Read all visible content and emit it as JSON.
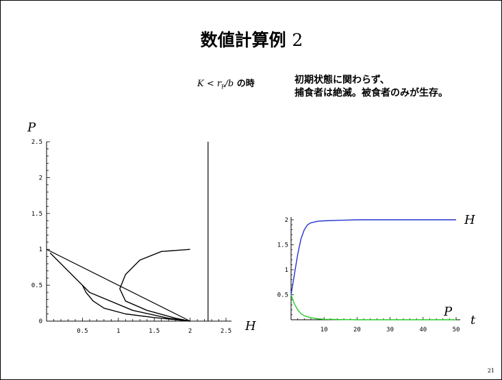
{
  "slide": {
    "title_main": "数値計算例",
    "title_num": "2",
    "condition_K": "K",
    "condition_lt": " < ",
    "condition_r": "r",
    "condition_sub": "P",
    "condition_b": "/b",
    "condition_suffix": " の時",
    "description_line1": "初期状態に関わらず、",
    "description_line2": "捕食者は絶滅。被食者のみが生存。",
    "page_number": "21"
  },
  "chart_data": [
    {
      "type": "line",
      "title": "",
      "xlabel": "H",
      "ylabel": "P",
      "xlim": [
        0,
        2.5
      ],
      "ylim": [
        0,
        2.5
      ],
      "x_ticks": [
        0.5,
        1,
        1.5,
        2,
        2.5
      ],
      "y_ticks": [
        0,
        0.5,
        1,
        1.5,
        2,
        2.5
      ],
      "x_tick_labels": [
        "0.5",
        "1",
        "1.5",
        "2",
        "2.5"
      ],
      "y_tick_labels": [
        "0",
        "0.5",
        "1",
        "1.5",
        "2",
        "2.5"
      ],
      "grid": false,
      "lines": [
        {
          "type": "nullcline",
          "points": [
            [
              0,
              1
            ],
            [
              2,
              0
            ]
          ]
        },
        {
          "type": "vertical",
          "points": [
            [
              2.25,
              0
            ],
            [
              2.25,
              2.5
            ]
          ]
        }
      ],
      "series": [
        {
          "points": [
            [
              2,
              1
            ],
            [
              1.6,
              0.97
            ],
            [
              1.3,
              0.85
            ],
            [
              1.1,
              0.65
            ],
            [
              1.02,
              0.45
            ],
            [
              1.1,
              0.28
            ],
            [
              1.4,
              0.15
            ],
            [
              1.8,
              0.04
            ],
            [
              2,
              0
            ]
          ]
        },
        {
          "points": [
            [
              0.5,
              0.5
            ],
            [
              0.55,
              0.4
            ],
            [
              0.65,
              0.28
            ],
            [
              0.8,
              0.18
            ],
            [
              1.1,
              0.1
            ],
            [
              1.5,
              0.05
            ],
            [
              2,
              0
            ]
          ]
        },
        {
          "points": [
            [
              0.05,
              0.95
            ],
            [
              0.6,
              0.4
            ],
            [
              1.2,
              0.15
            ],
            [
              1.7,
              0.04
            ],
            [
              2,
              0
            ]
          ]
        }
      ]
    },
    {
      "type": "line",
      "title": "",
      "xlabel": "t",
      "ylabel": "",
      "xlim": [
        0,
        50
      ],
      "ylim": [
        0,
        2
      ],
      "x_ticks": [
        10,
        20,
        30,
        40,
        50
      ],
      "y_ticks": [
        0.5,
        1,
        1.5,
        2
      ],
      "x_tick_labels": [
        "10",
        "20",
        "30",
        "40",
        "50"
      ],
      "y_tick_labels": [
        "0.5",
        "1",
        "1.5",
        "2"
      ],
      "grid": false,
      "series": [
        {
          "name": "H",
          "color": "#2233cc",
          "points": [
            [
              0,
              0.5
            ],
            [
              1,
              0.9
            ],
            [
              2,
              1.3
            ],
            [
              3,
              1.62
            ],
            [
              4,
              1.8
            ],
            [
              5,
              1.9
            ],
            [
              6,
              1.94
            ],
            [
              8,
              1.97
            ],
            [
              10,
              1.98
            ],
            [
              15,
              1.99
            ],
            [
              20,
              2
            ],
            [
              50,
              2
            ]
          ]
        },
        {
          "name": "P",
          "color": "#22cc22",
          "points": [
            [
              0,
              0.5
            ],
            [
              1,
              0.32
            ],
            [
              2,
              0.2
            ],
            [
              3,
              0.12
            ],
            [
              4,
              0.08
            ],
            [
              6,
              0.04
            ],
            [
              8,
              0.02
            ],
            [
              10,
              0.01
            ],
            [
              15,
              0.004
            ],
            [
              20,
              0
            ],
            [
              50,
              0
            ]
          ]
        }
      ]
    }
  ]
}
